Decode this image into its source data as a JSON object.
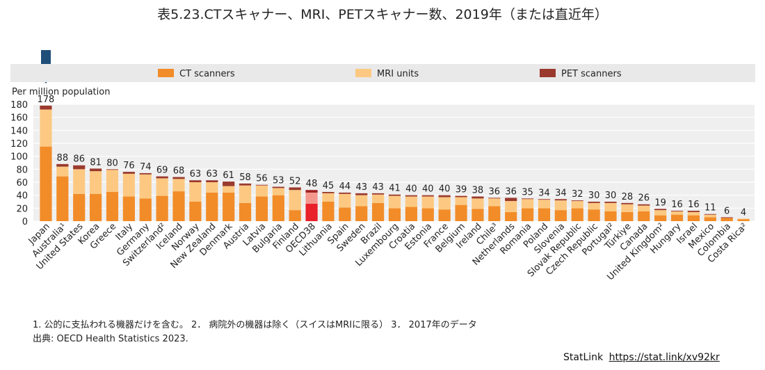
{
  "title": "表5.23.CTスキャナー、MRI、PETスキャナー数、2019年（または直近年）",
  "notes": {
    "line1": "1.  公的に支払われる機器だけを含む。 2．  病院外の機器は除く（スイスはMRIに限る） 3．  2017年のデータ",
    "line2": "出典: OECD Health Statistics 2023."
  },
  "statlink": {
    "label": "StatLink",
    "url": "https://stat.link/xv92kr"
  },
  "colors": {
    "ct": "#f28c28",
    "mri": "#fdc982",
    "pet": "#9a3a2e",
    "oecd_ct": "#e8212b",
    "oecd_mri": "#f4988e",
    "oecd_pet": "#a01f1f",
    "legend_bg": "#e9e9e9",
    "arrow": "#1f4e79"
  },
  "chart_data": {
    "type": "bar",
    "stacked": true,
    "ylabel": "Per million population",
    "ylim": [
      0,
      180
    ],
    "yticks": [
      0,
      20,
      40,
      60,
      80,
      100,
      120,
      140,
      160,
      180
    ],
    "grid": true,
    "legend_position": "top",
    "categories": [
      "Japan",
      "Australia¹",
      "United States",
      "Korea",
      "Greece",
      "Italy",
      "Germany",
      "Switzerland²",
      "Iceland",
      "Norway",
      "New Zealand",
      "Denmark",
      "Austria",
      "Latvia",
      "Bulgaria",
      "Finland",
      "OECD38",
      "Lithuania",
      "Spain",
      "Sweden",
      "Brazil",
      "Luxembourg",
      "Croatia",
      "Estonia",
      "France",
      "Belgium",
      "Ireland",
      "Chile³",
      "Netherlands",
      "Romania",
      "Poland",
      "Slovenia",
      "Slovak Republic",
      "Czech Republic",
      "Portugal²",
      "Türkiye",
      "Canada",
      "United Kingdom²",
      "Hungary",
      "Israel",
      "Mexico",
      "Colombia",
      "Costa Rica²"
    ],
    "totals": [
      178,
      88,
      86,
      81,
      80,
      76,
      74,
      69,
      68,
      63,
      63,
      61,
      58,
      56,
      53,
      52,
      48,
      45,
      44,
      43,
      43,
      41,
      40,
      40,
      40,
      39,
      38,
      36,
      36,
      35,
      34,
      34,
      32,
      30,
      30,
      28,
      26,
      19,
      16,
      16,
      11,
      6,
      4
    ],
    "series": [
      {
        "name": "CT scanners",
        "values": [
          115,
          69,
          42,
          42,
          45,
          38,
          35,
          39,
          46,
          30,
          44,
          44,
          28,
          38,
          40,
          17,
          27,
          30,
          21,
          23,
          28,
          20,
          22,
          20,
          18,
          25,
          19,
          23,
          14,
          20,
          20,
          17,
          20,
          18,
          15,
          14,
          15,
          9,
          10,
          9,
          6,
          5,
          3
        ]
      },
      {
        "name": "MRI units",
        "values": [
          57,
          15,
          38,
          35,
          34,
          35,
          37,
          27,
          19,
          30,
          16,
          10,
          27,
          17,
          11,
          31,
          17,
          13,
          21,
          17,
          13,
          19,
          16,
          18,
          19,
          12,
          16,
          12,
          17,
          14,
          13,
          15,
          11,
          10,
          13,
          12,
          9,
          8,
          5,
          5,
          4,
          0,
          1
        ]
      },
      {
        "name": "PET scanners",
        "values": [
          6,
          4,
          6,
          4,
          1,
          3,
          2,
          3,
          3,
          3,
          3,
          7,
          3,
          1,
          2,
          4,
          4,
          2,
          2,
          3,
          2,
          2,
          2,
          2,
          3,
          2,
          3,
          1,
          5,
          1,
          1,
          2,
          1,
          2,
          2,
          2,
          2,
          2,
          1,
          2,
          1,
          1,
          0
        ]
      }
    ]
  }
}
